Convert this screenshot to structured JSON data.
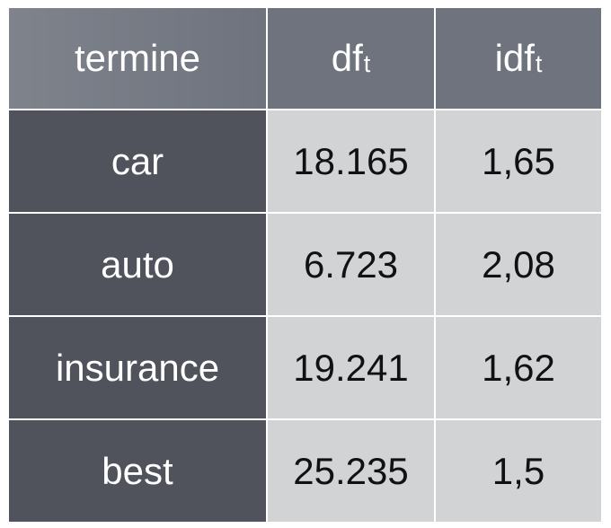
{
  "table": {
    "headers": [
      {
        "main": "termine",
        "sub": ""
      },
      {
        "main": "df",
        "sub": "t"
      },
      {
        "main": "idf",
        "sub": "t"
      }
    ],
    "rows": [
      {
        "term": "car",
        "df": "18.165",
        "idf": "1,65"
      },
      {
        "term": "auto",
        "df": "6.723",
        "idf": "2,08"
      },
      {
        "term": "insurance",
        "df": "19.241",
        "idf": "1,62"
      },
      {
        "term": "best",
        "df": "25.235",
        "idf": "1,5"
      }
    ]
  },
  "colors": {
    "header_bg": "#6e737d",
    "row_header_bg": "#50535c",
    "value_bg": "#d2d3d5",
    "header_text": "#ffffff",
    "value_text": "#111111"
  }
}
